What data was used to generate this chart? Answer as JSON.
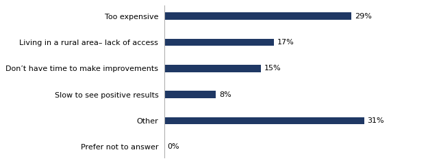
{
  "categories": [
    "Prefer not to answer",
    "Other",
    "Slow to see positive results",
    "Don’t have time to make improvements",
    "Living in a rural area– lack of access",
    "Too expensive"
  ],
  "values": [
    0,
    31,
    8,
    15,
    17,
    29
  ],
  "bar_color": "#1f3864",
  "label_color": "#000000",
  "background_color": "#ffffff",
  "spine_color": "#b0b0b0",
  "xlim": [
    0,
    40
  ],
  "bar_height": 0.28,
  "label_fontsize": 8.0,
  "tick_fontsize": 8.0,
  "figure_width": 6.25,
  "figure_height": 2.39,
  "dpi": 100
}
